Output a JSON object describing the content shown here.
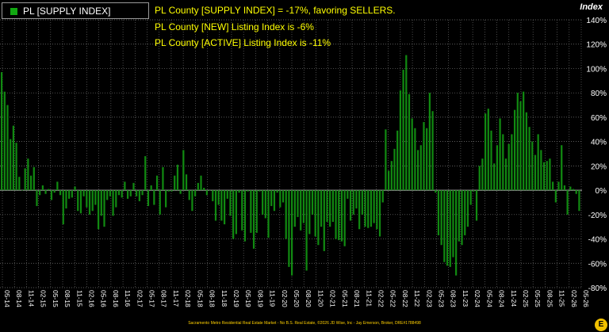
{
  "legend": {
    "label": "PL [SUPPLY INDEX]"
  },
  "annotations": [
    "PL County [SUPPLY INDEX] = -17%, favoring SELLERS.",
    "PL County [NEW] Listing Index is -6%",
    "PL County [ACTIVE] Listing Index is -11%"
  ],
  "footer": "Sacramento Metro Residential Real Estate Market - No B.S. Real Estate, ©2026 JD Wise, Inc - Jay Emerson, Broker, DRE#1788498",
  "logo_text": "E",
  "colors": {
    "bar": "#118a11",
    "grid": "#7a7a7a",
    "zero_line": "#bbbbbb",
    "text": "#ffffff",
    "annotation": "#ffff00"
  },
  "chart_data": {
    "type": "bar",
    "title": "",
    "xlabel": "",
    "ylabel": "Index",
    "ylim": [
      -80,
      140
    ],
    "yticks": [
      140,
      120,
      100,
      80,
      60,
      40,
      20,
      0,
      -20,
      -40,
      -60,
      -80
    ],
    "ytick_labels": [
      "140%",
      "120%",
      "100%",
      "80%",
      "60%",
      "40%",
      "20%",
      "0%",
      "-20%",
      "-40%",
      "-60%",
      "-80%"
    ],
    "grid": true,
    "legend_position": "top-left",
    "xtick_labels": [
      "05-14",
      "08-14",
      "11-14",
      "02-15",
      "05-15",
      "08-15",
      "11-15",
      "02-16",
      "05-16",
      "08-16",
      "11-16",
      "02-17",
      "05-17",
      "08-17",
      "11-17",
      "02-18",
      "05-18",
      "08-18",
      "11-18",
      "02-19",
      "05-19",
      "08-19",
      "11-19",
      "02-20",
      "05-20",
      "08-20",
      "11-20",
      "02-21",
      "05-21",
      "08-21",
      "11-21",
      "02-22",
      "05-22",
      "08-22",
      "11-22",
      "02-23",
      "05-23",
      "08-23",
      "11-23",
      "02-24",
      "05-24",
      "08-24",
      "11-24",
      "02-25",
      "05-25",
      "08-25",
      "11-25",
      "02-26",
      "05-26"
    ],
    "series": [
      {
        "name": "PL [SUPPLY INDEX]",
        "values": [
          97,
          81,
          70,
          42,
          53,
          39,
          11,
          0,
          18,
          26,
          12,
          19,
          -13,
          -4,
          4,
          -3,
          1,
          -8,
          -2,
          7,
          -4,
          -28,
          -15,
          -7,
          -6,
          3,
          -17,
          -19,
          -5,
          -14,
          -20,
          -17,
          -12,
          -32,
          -21,
          -30,
          -8,
          -5,
          -21,
          -14,
          -4,
          -6,
          7,
          -7,
          -5,
          6,
          -5,
          -9,
          -4,
          28,
          -13,
          4,
          -12,
          12,
          -20,
          19,
          -14,
          -1,
          -1,
          12,
          21,
          -3,
          33,
          13,
          -8,
          -17,
          -5,
          6,
          12,
          2,
          -4,
          0,
          -9,
          -25,
          -12,
          -25,
          -28,
          -7,
          -21,
          -40,
          -36,
          -2,
          -33,
          -42,
          -1,
          -35,
          -48,
          -35,
          -1,
          -20,
          -23,
          -39,
          -13,
          -17,
          -2,
          -14,
          -10,
          -40,
          -63,
          -70,
          -30,
          -22,
          -33,
          -27,
          -66,
          -36,
          -20,
          -38,
          -45,
          -30,
          -50,
          -26,
          -30,
          -26,
          -40,
          -41,
          -42,
          -46,
          -7,
          -25,
          -20,
          -15,
          -32,
          -20,
          -30,
          -31,
          -30,
          -27,
          -32,
          -38,
          -10,
          50,
          16,
          24,
          34,
          49,
          82,
          99,
          111,
          79,
          59,
          51,
          33,
          37,
          56,
          51,
          80,
          65,
          -2,
          -37,
          -45,
          -59,
          -62,
          -63,
          -55,
          -70,
          -42,
          -45,
          -37,
          -30,
          -12,
          -1,
          -25,
          20,
          26,
          63,
          67,
          49,
          22,
          37,
          59,
          46,
          26,
          38,
          46,
          66,
          80,
          73,
          81,
          64,
          52,
          40,
          29,
          46,
          33,
          23,
          24,
          26,
          7,
          -10,
          7,
          37,
          4,
          -20,
          3,
          1,
          -3,
          -17
        ]
      }
    ]
  }
}
